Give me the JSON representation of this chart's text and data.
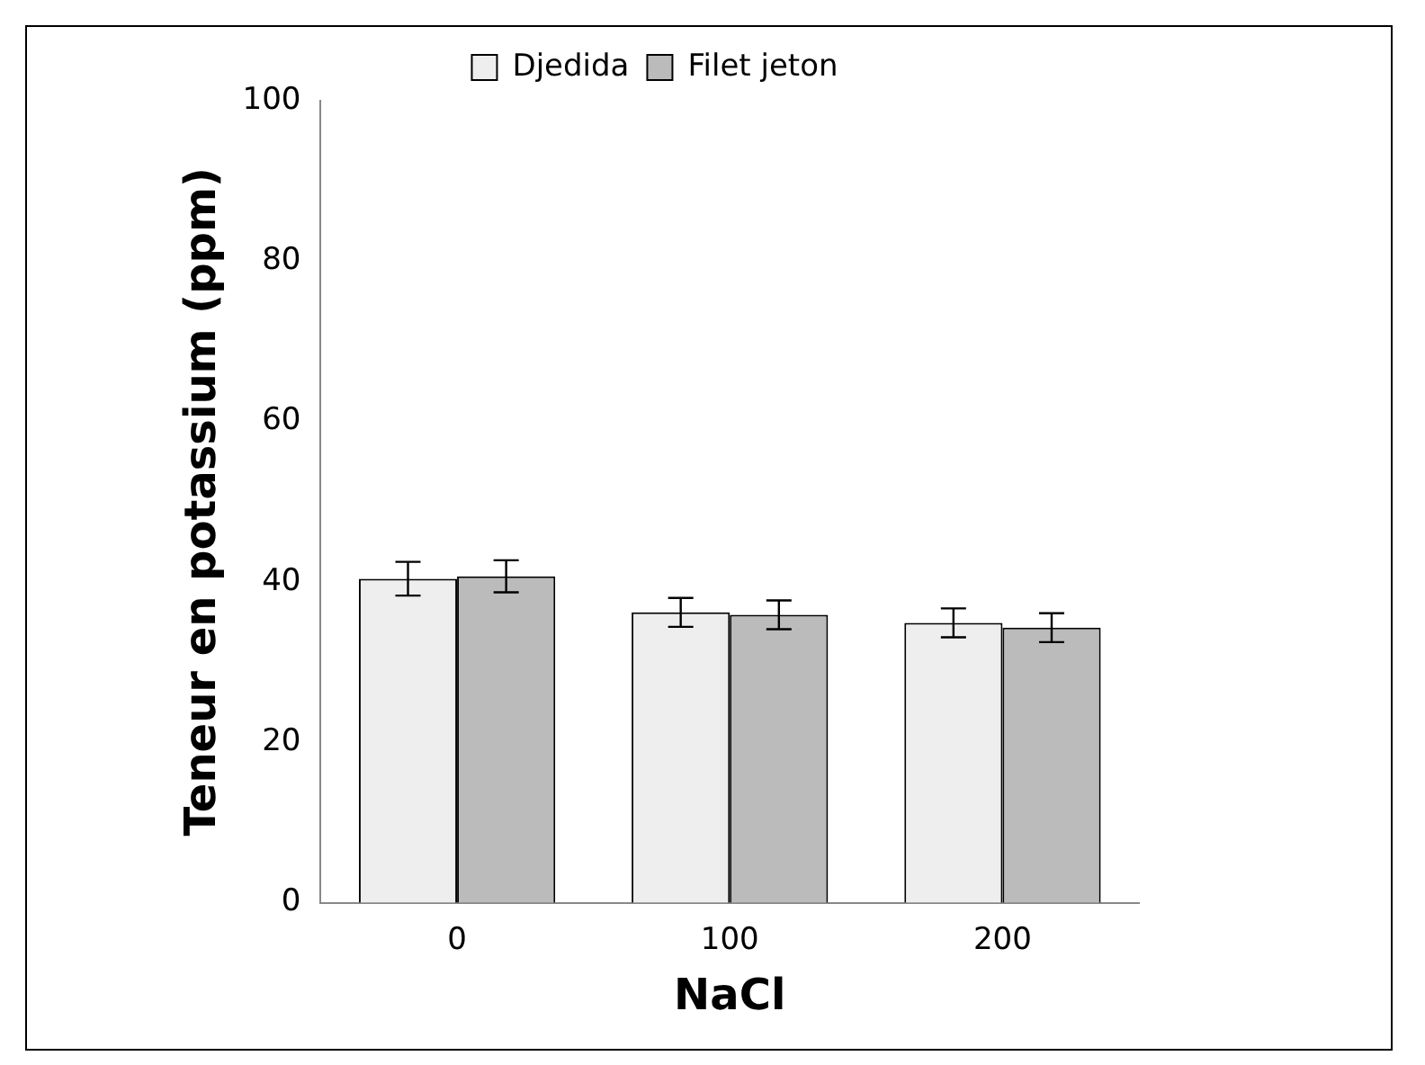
{
  "chart_data": {
    "type": "bar",
    "xlabel": "NaCl",
    "ylabel": "Teneur en potassium (ppm)",
    "categories": [
      "0",
      "100",
      "200"
    ],
    "series": [
      {
        "name": "Djedida",
        "color": "#eeeeee",
        "values": [
          40.4,
          36.2,
          34.9
        ],
        "errors": [
          2.1,
          1.8,
          1.8
        ]
      },
      {
        "name": "Filet jeton",
        "color": "#bbbbbb",
        "values": [
          40.7,
          35.9,
          34.3
        ],
        "errors": [
          2.0,
          1.8,
          1.8
        ]
      }
    ],
    "ylim": [
      0,
      100
    ],
    "yticks": [
      0,
      20,
      40,
      60,
      80,
      100
    ],
    "grid": false,
    "legend": "top"
  }
}
